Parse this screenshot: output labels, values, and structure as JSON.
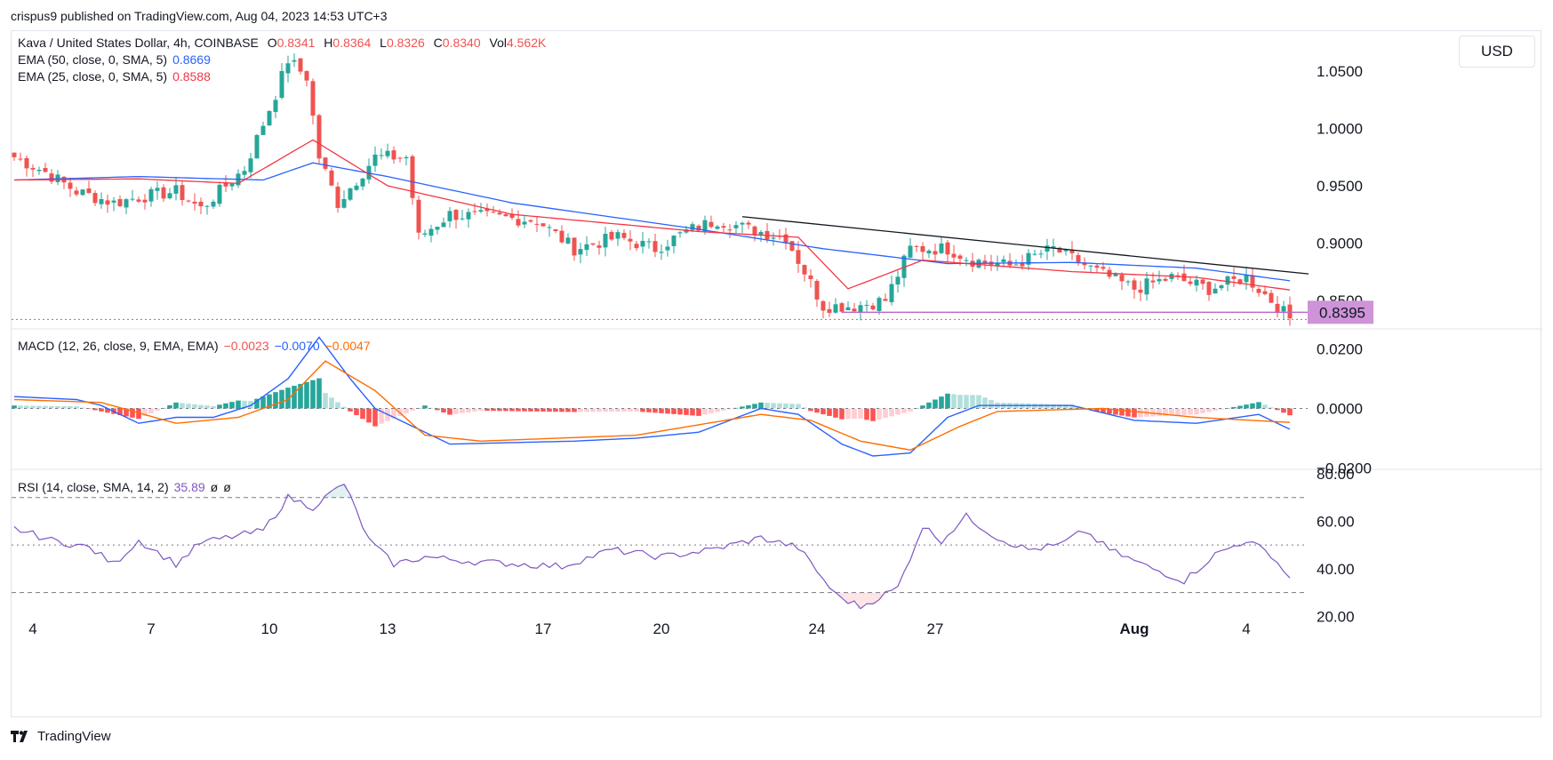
{
  "header": {
    "published": "crispus9 published on TradingView.com, Aug 04, 2023 14:53 UTC+3"
  },
  "currency_button": "USD",
  "footer": {
    "brand": "TradingView"
  },
  "legend": {
    "symbol": "Kava / United States Dollar, 4h, COINBASE",
    "open_label": "O",
    "open": "0.8341",
    "high_label": "H",
    "high": "0.8364",
    "low_label": "L",
    "low": "0.8326",
    "close_label": "C",
    "close": "0.8340",
    "vol_label": "Vol",
    "vol": "4.562K",
    "ema50_label": "EMA (50, close, 0, SMA, 5)",
    "ema50_value": "0.8669",
    "ema25_label": "EMA (25, close, 0, SMA, 5)",
    "ema25_value": "0.8588",
    "macd_label": "MACD (12, 26, close, 9, EMA, EMA)",
    "macd_hist": "−0.0023",
    "macd_line": "−0.0070",
    "macd_signal": "−0.0047",
    "rsi_label": "RSI (14, close, SMA, 14, 2)",
    "rsi_value": "35.89",
    "rsi_extra1": "ø",
    "rsi_extra2": "ø"
  },
  "colors": {
    "up": "#26a69a",
    "down": "#ef5350",
    "ema50": "#2962ff",
    "ema25": "#f23645",
    "macd": "#2962ff",
    "signal": "#ff6d00",
    "rsi": "#7e57c2",
    "price_label_bg": "#ce93d8"
  },
  "chart_data": [
    {
      "type": "candlestick",
      "title": "Kava / United States Dollar, 4h, COINBASE",
      "x_ticks": [
        "4",
        "7",
        "10",
        "13",
        "17",
        "20",
        "24",
        "27",
        "Aug",
        "4"
      ],
      "y_ticks": [
        "1.0500",
        "1.0000",
        "0.9500",
        "0.9000",
        "0.8500"
      ],
      "ylim": [
        0.825,
        1.085
      ],
      "last_price": "0.8395",
      "key_points": [
        [
          0,
          0.975
        ],
        [
          5,
          0.962
        ],
        [
          10,
          0.945
        ],
        [
          16,
          0.935
        ],
        [
          20,
          0.94
        ],
        [
          26,
          0.945
        ],
        [
          30,
          0.93
        ],
        [
          33,
          0.945
        ],
        [
          37,
          0.965
        ],
        [
          42,
          1.03
        ],
        [
          44,
          1.06
        ],
        [
          47,
          1.045
        ],
        [
          49,
          0.975
        ],
        [
          52,
          0.935
        ],
        [
          58,
          0.975
        ],
        [
          63,
          0.975
        ],
        [
          65,
          0.905
        ],
        [
          70,
          0.925
        ],
        [
          78,
          0.922
        ],
        [
          84,
          0.92
        ],
        [
          90,
          0.895
        ],
        [
          97,
          0.905
        ],
        [
          103,
          0.895
        ],
        [
          108,
          0.91
        ],
        [
          113,
          0.92
        ],
        [
          118,
          0.912
        ],
        [
          124,
          0.905
        ],
        [
          130,
          0.845
        ],
        [
          135,
          0.845
        ],
        [
          140,
          0.85
        ],
        [
          144,
          0.895
        ],
        [
          150,
          0.895
        ],
        [
          154,
          0.885
        ],
        [
          160,
          0.88
        ],
        [
          167,
          0.895
        ],
        [
          174,
          0.875
        ],
        [
          180,
          0.86
        ],
        [
          186,
          0.87
        ],
        [
          192,
          0.86
        ],
        [
          198,
          0.87
        ],
        [
          202,
          0.85
        ],
        [
          205,
          0.834
        ]
      ],
      "ema50_key": [
        [
          0,
          0.955
        ],
        [
          20,
          0.958
        ],
        [
          40,
          0.955
        ],
        [
          48,
          0.97
        ],
        [
          60,
          0.958
        ],
        [
          80,
          0.935
        ],
        [
          110,
          0.912
        ],
        [
          130,
          0.895
        ],
        [
          150,
          0.882
        ],
        [
          170,
          0.883
        ],
        [
          190,
          0.878
        ],
        [
          205,
          0.867
        ]
      ],
      "ema25_key": [
        [
          0,
          0.955
        ],
        [
          20,
          0.956
        ],
        [
          36,
          0.952
        ],
        [
          48,
          0.99
        ],
        [
          60,
          0.95
        ],
        [
          80,
          0.925
        ],
        [
          110,
          0.91
        ],
        [
          126,
          0.905
        ],
        [
          134,
          0.86
        ],
        [
          146,
          0.885
        ],
        [
          170,
          0.875
        ],
        [
          190,
          0.87
        ],
        [
          205,
          0.859
        ]
      ],
      "trendline": [
        [
          0.923,
          117
        ],
        [
          0.873,
          208
        ]
      ],
      "support_level": 0.8395
    },
    {
      "type": "line",
      "title": "MACD (12, 26, close, 9, EMA, EMA)",
      "y_ticks": [
        "0.0200",
        "0.0000",
        "−0.0200"
      ],
      "ylim": [
        -0.0205,
        0.0265
      ],
      "series": [
        {
          "name": "MACD",
          "key": [
            [
              0,
              0.004
            ],
            [
              10,
              0.003
            ],
            [
              14,
              0.001
            ],
            [
              20,
              -0.005
            ],
            [
              26,
              -0.003
            ],
            [
              32,
              -0.003
            ],
            [
              38,
              0.001
            ],
            [
              44,
              0.01
            ],
            [
              49,
              0.024
            ],
            [
              54,
              0.01
            ],
            [
              58,
              0.0
            ],
            [
              63,
              -0.005
            ],
            [
              70,
              -0.012
            ],
            [
              90,
              -0.011
            ],
            [
              100,
              -0.01
            ],
            [
              110,
              -0.008
            ],
            [
              120,
              0.0
            ],
            [
              126,
              -0.002
            ],
            [
              133,
              -0.012
            ],
            [
              138,
              -0.016
            ],
            [
              144,
              -0.015
            ],
            [
              150,
              -0.003
            ],
            [
              155,
              0.001
            ],
            [
              170,
              0.001
            ],
            [
              180,
              -0.004
            ],
            [
              190,
              -0.005
            ],
            [
              200,
              -0.002
            ],
            [
              205,
              -0.007
            ]
          ]
        },
        {
          "name": "Signal",
          "key": [
            [
              0,
              0.003
            ],
            [
              14,
              0.002
            ],
            [
              26,
              -0.005
            ],
            [
              36,
              -0.003
            ],
            [
              44,
              0.003
            ],
            [
              50,
              0.016
            ],
            [
              58,
              0.006
            ],
            [
              66,
              -0.009
            ],
            [
              75,
              -0.011
            ],
            [
              100,
              -0.009
            ],
            [
              120,
              -0.002
            ],
            [
              128,
              -0.004
            ],
            [
              136,
              -0.011
            ],
            [
              144,
              -0.014
            ],
            [
              152,
              -0.006
            ],
            [
              158,
              -0.001
            ],
            [
              175,
              0.0
            ],
            [
              190,
              -0.003
            ],
            [
              205,
              -0.0047
            ]
          ]
        }
      ]
    },
    {
      "type": "line",
      "title": "RSI (14, close, SMA, 14, 2)",
      "y_ticks": [
        "80.00",
        "60.00",
        "40.00",
        "20.00"
      ],
      "ylim": [
        17.5,
        81.5
      ],
      "bands": [
        70,
        50,
        30
      ],
      "key_points": [
        [
          0,
          57
        ],
        [
          6,
          52
        ],
        [
          12,
          49
        ],
        [
          16,
          42
        ],
        [
          20,
          52
        ],
        [
          26,
          42
        ],
        [
          30,
          51
        ],
        [
          40,
          56
        ],
        [
          44,
          70
        ],
        [
          48,
          66
        ],
        [
          53,
          76
        ],
        [
          57,
          52
        ],
        [
          61,
          42
        ],
        [
          66,
          45
        ],
        [
          74,
          43
        ],
        [
          88,
          41
        ],
        [
          96,
          48
        ],
        [
          104,
          45
        ],
        [
          112,
          48
        ],
        [
          120,
          53
        ],
        [
          126,
          49
        ],
        [
          132,
          29
        ],
        [
          136,
          24
        ],
        [
          142,
          32
        ],
        [
          146,
          58
        ],
        [
          149,
          52
        ],
        [
          153,
          62
        ],
        [
          158,
          53
        ],
        [
          163,
          48
        ],
        [
          168,
          50
        ],
        [
          172,
          56
        ],
        [
          176,
          48
        ],
        [
          182,
          41
        ],
        [
          188,
          35
        ],
        [
          193,
          46
        ],
        [
          198,
          52
        ],
        [
          202,
          46
        ],
        [
          205,
          35.89
        ]
      ]
    }
  ]
}
